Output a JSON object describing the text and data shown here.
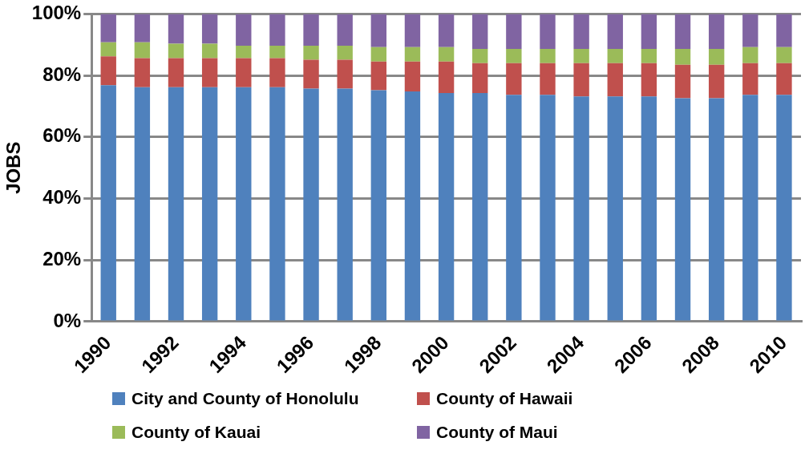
{
  "chart_data": {
    "type": "bar",
    "stacked": true,
    "ylabel": "JOBS",
    "categories": [
      "1990",
      null,
      "1992",
      null,
      "1994",
      null,
      "1996",
      null,
      "1998",
      null,
      "2000",
      null,
      "2002",
      null,
      "2004",
      null,
      "2006",
      null,
      "2008",
      null,
      "2010"
    ],
    "series": [
      {
        "name": "City and County of Honolulu",
        "color": "#4f81bd",
        "values": [
          76.8,
          76.2,
          76.2,
          76.2,
          76.2,
          76.2,
          75.7,
          75.7,
          75.2,
          74.8,
          74.3,
          74.3,
          73.7,
          73.7,
          73.2,
          73.2,
          73.2,
          72.6,
          72.6,
          73.7,
          73.7
        ]
      },
      {
        "name": "County of Hawaii",
        "color": "#c0504d",
        "values": [
          9.4,
          9.4,
          9.4,
          9.4,
          9.4,
          9.4,
          9.4,
          9.4,
          9.3,
          9.7,
          10.2,
          9.7,
          10.3,
          10.3,
          10.8,
          10.8,
          10.8,
          10.9,
          10.9,
          10.3,
          10.3
        ]
      },
      {
        "name": "County of Kauai",
        "color": "#9bbb59",
        "values": [
          4.6,
          5.2,
          4.7,
          4.7,
          4.1,
          4.1,
          4.6,
          4.6,
          4.7,
          4.7,
          4.7,
          4.6,
          4.6,
          4.6,
          4.6,
          4.6,
          4.6,
          5.1,
          5.1,
          5.2,
          5.2
        ]
      },
      {
        "name": "County of Maui",
        "color": "#8064a2",
        "values": [
          9.2,
          9.2,
          9.7,
          9.7,
          10.3,
          10.3,
          10.3,
          10.3,
          10.8,
          10.8,
          10.8,
          11.4,
          11.4,
          11.4,
          11.4,
          11.4,
          11.4,
          11.4,
          11.4,
          10.8,
          10.8
        ]
      }
    ],
    "ylim": [
      0,
      100
    ],
    "yticks": [
      {
        "value": 0,
        "label": "0%"
      },
      {
        "value": 20,
        "label": "20%"
      },
      {
        "value": 40,
        "label": "40%"
      },
      {
        "value": 60,
        "label": "60%"
      },
      {
        "value": 80,
        "label": "80%"
      },
      {
        "value": 100,
        "label": "100%"
      }
    ],
    "grid": "y",
    "legend": "bottom"
  }
}
